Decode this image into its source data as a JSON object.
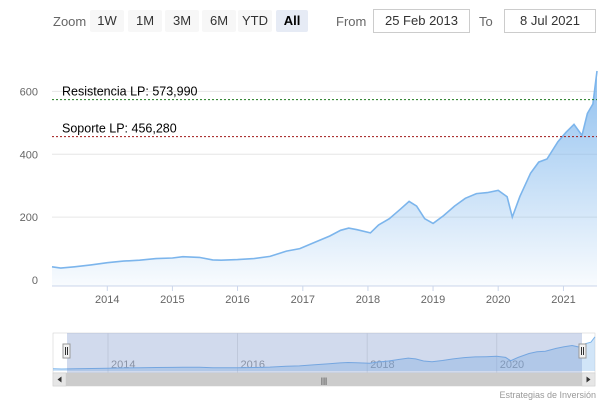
{
  "range_selector": {
    "zoom_label": "Zoom",
    "buttons": [
      "1W",
      "1M",
      "3M",
      "6M",
      "YTD",
      "All"
    ],
    "active_button": "All",
    "from_label": "From",
    "from_value": "25 Feb 2013",
    "to_label": "To",
    "to_value": "8 Jul 2021"
  },
  "navigator": {
    "year_labels": [
      "2014",
      "2016",
      "2018",
      "2020"
    ],
    "scroll_grip": "|||"
  },
  "credits": "Estrategias de Inversión",
  "colors": {
    "line": "#7cb5ec",
    "fill_top": "#7cb5ec",
    "resistance": "#1e7b1e",
    "support": "#a01818",
    "navigator_mask": "#6685c2"
  },
  "chart_data": {
    "type": "area",
    "title": "",
    "xlabel": "",
    "ylabel": "",
    "x_ticks": [
      "2014",
      "2015",
      "2016",
      "2017",
      "2018",
      "2019",
      "2020",
      "2021"
    ],
    "y_ticks": [
      0,
      200,
      400,
      600
    ],
    "ylim": [
      0,
      700
    ],
    "xlim": [
      "2013-02-25",
      "2021-07-08"
    ],
    "grid": true,
    "legend": "none",
    "annotations": [
      {
        "label": "Resistencia LP: 573,990",
        "value": 573.99,
        "style": "dashed",
        "color": "#1e7b1e"
      },
      {
        "label": "Soporte LP: 456,280",
        "value": 456.28,
        "style": "dashed",
        "color": "#a01818"
      }
    ],
    "series": [
      {
        "x": [
          "2013-02-25",
          "2013-04-15",
          "2013-07-01",
          "2013-10-01",
          "2014-01-01",
          "2014-04-01",
          "2014-07-01",
          "2014-10-01",
          "2015-01-01",
          "2015-03-01",
          "2015-06-01",
          "2015-08-15",
          "2015-10-01",
          "2016-01-01",
          "2016-04-01",
          "2016-07-01",
          "2016-10-01",
          "2016-12-15",
          "2017-03-01",
          "2017-06-01",
          "2017-08-01",
          "2017-09-15",
          "2017-11-01",
          "2018-01-15",
          "2018-03-01",
          "2018-05-01",
          "2018-07-01",
          "2018-08-20",
          "2018-10-01",
          "2018-11-15",
          "2019-01-01",
          "2019-03-01",
          "2019-05-01",
          "2019-07-01",
          "2019-09-01",
          "2019-11-01",
          "2020-01-01",
          "2020-02-20",
          "2020-03-20",
          "2020-05-01",
          "2020-07-01",
          "2020-08-15",
          "2020-10-01",
          "2020-12-01",
          "2021-01-15",
          "2021-03-01",
          "2021-04-15",
          "2021-05-15",
          "2021-06-15",
          "2021-07-08"
        ],
        "values": [
          42,
          38,
          42,
          48,
          55,
          60,
          63,
          68,
          70,
          74,
          72,
          64,
          63,
          65,
          68,
          75,
          92,
          100,
          118,
          140,
          158,
          165,
          160,
          150,
          175,
          195,
          225,
          250,
          235,
          195,
          180,
          205,
          235,
          260,
          275,
          278,
          285,
          265,
          200,
          265,
          340,
          375,
          385,
          440,
          470,
          495,
          460,
          530,
          560,
          665
        ]
      }
    ]
  }
}
